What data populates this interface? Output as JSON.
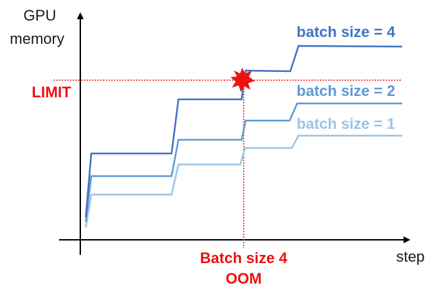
{
  "axes": {
    "y_label_line1": "GPU",
    "y_label_line2": "memory",
    "x_label": "step"
  },
  "limit": {
    "label": "LIMIT",
    "color": "#ee1111"
  },
  "oom": {
    "line1": "Batch size 4",
    "line2": "OOM",
    "color": "#ee1111",
    "marker_icon": "explosion-icon"
  },
  "series": [
    {
      "key": "bs4",
      "label": "batch size = 4",
      "color": "#4472c4"
    },
    {
      "key": "bs2",
      "label": "batch size = 2",
      "color": "#5b9bd5"
    },
    {
      "key": "bs1",
      "label": "batch size = 1",
      "color": "#9dc3e6"
    }
  ]
}
